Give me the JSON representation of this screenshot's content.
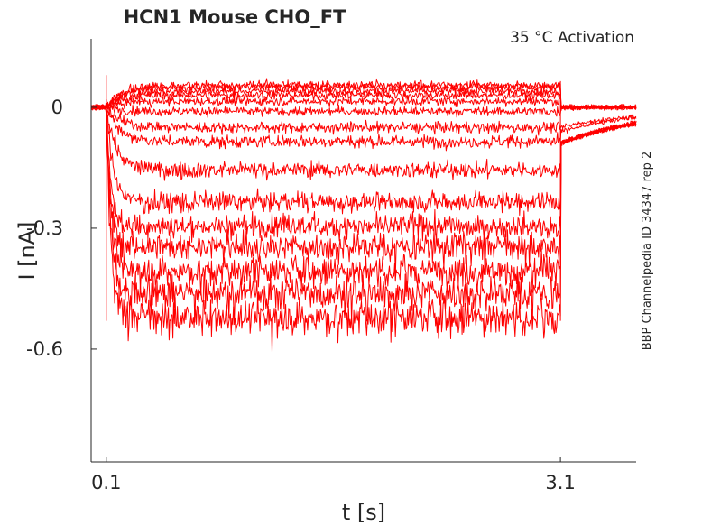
{
  "chart_data": {
    "type": "line",
    "title": "HCN1  Mouse  CHO_FT",
    "annotation": "35 °C  Activation",
    "side_label": "BBP Channelpedia ID 34347 rep 2",
    "xlabel": "t [s]",
    "ylabel": "I [nA]",
    "xlim": [
      0.0,
      3.6
    ],
    "ylim": [
      -0.88,
      0.17
    ],
    "x_ticks": [
      0.1,
      3.1
    ],
    "x_tick_labels": [
      "0.1",
      "3.1"
    ],
    "y_ticks": [
      0,
      -0.3,
      -0.6
    ],
    "y_tick_labels": [
      "0",
      "-0.3",
      "-0.6"
    ],
    "grid": false,
    "legend": "none",
    "line_color": "#ff0000",
    "step": {
      "start": 0.1,
      "end": 3.1
    },
    "series": [
      {
        "values": {
          "baseline": 0.0,
          "plateau": 0.055,
          "tail": 0.0
        }
      },
      {
        "values": {
          "baseline": 0.0,
          "plateau": 0.05,
          "tail": 0.0
        }
      },
      {
        "values": {
          "baseline": 0.0,
          "plateau": 0.04,
          "tail": 0.0
        }
      },
      {
        "values": {
          "baseline": 0.0,
          "plateau": 0.03,
          "tail": 0.0
        }
      },
      {
        "values": {
          "baseline": 0.0,
          "plateau": 0.015,
          "tail": 0.0
        }
      },
      {
        "values": {
          "baseline": 0.0,
          "plateau": -0.01,
          "tail": 0.0
        }
      },
      {
        "values": {
          "baseline": 0.0,
          "plateau": -0.05,
          "tail": -0.05
        }
      },
      {
        "values": {
          "baseline": 0.0,
          "plateau": -0.085,
          "tail": -0.06
        }
      },
      {
        "values": {
          "baseline": 0.0,
          "plateau": -0.155,
          "tail": -0.09
        }
      },
      {
        "values": {
          "baseline": 0.0,
          "plateau": -0.235,
          "tail": -0.09
        }
      },
      {
        "values": {
          "baseline": 0.0,
          "plateau": -0.295,
          "tail": -0.09
        }
      },
      {
        "values": {
          "baseline": 0.0,
          "plateau": -0.345,
          "tail": -0.09
        }
      },
      {
        "values": {
          "baseline": 0.0,
          "plateau": -0.405,
          "tail": -0.09
        }
      },
      {
        "values": {
          "baseline": 0.0,
          "plateau": -0.46,
          "tail": -0.09
        }
      },
      {
        "values": {
          "baseline": 0.0,
          "plateau": -0.52,
          "tail": -0.09
        }
      }
    ]
  }
}
